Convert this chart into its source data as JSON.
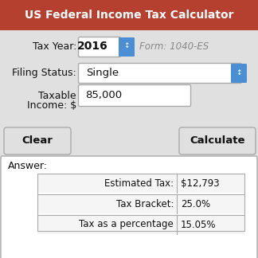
{
  "title": "US Federal Income Tax Calculator",
  "title_bg": "#b54030",
  "title_color": "#ffffff",
  "bg_color": "#e0e0e0",
  "label_tax_year": "Tax Year:",
  "value_tax_year": "2016",
  "form_text": "Form: 1040-ES",
  "label_filing": "Filing Status:",
  "value_filing": "Single",
  "label_taxable1": "Taxable",
  "label_taxable2": "Income: $",
  "value_taxable": "85,000",
  "btn_clear": "Clear",
  "btn_calc": "Calculate",
  "answer_label": "Answer:",
  "table_rows": [
    [
      "Estimated Tax:",
      "$12,793"
    ],
    [
      "Tax Bracket:",
      "25.0%"
    ],
    [
      "Tax as a percentage",
      "15.05%"
    ]
  ],
  "dropdown_color": "#4a8fd4",
  "input_bg": "#ffffff",
  "border_color": "#aaaaaa",
  "text_color": "#111111",
  "form_color": "#888888",
  "table_bg": "#f5f5f5"
}
